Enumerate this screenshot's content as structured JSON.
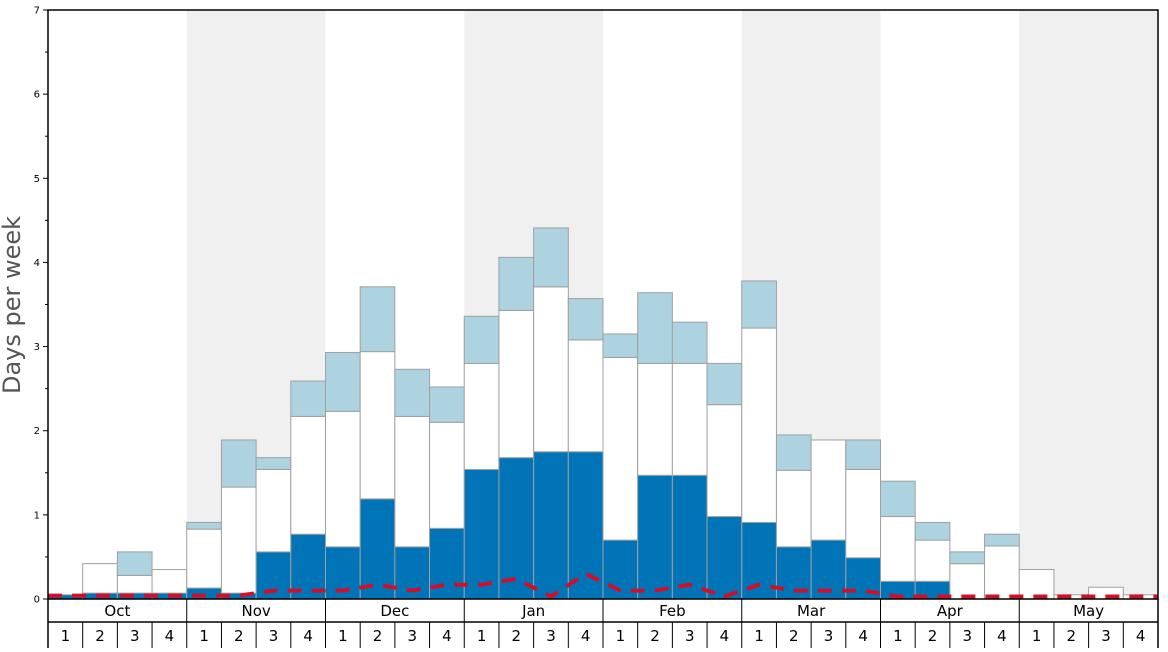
{
  "chart_data": {
    "type": "bar",
    "ylabel": "Days per week",
    "ylim": [
      0,
      7
    ],
    "y_ticks": [
      "0",
      "1",
      "2",
      "3",
      "4",
      "5",
      "6",
      "7"
    ],
    "months": [
      "Oct",
      "Nov",
      "Dec",
      "Jan",
      "Feb",
      "Mar",
      "Apr",
      "May"
    ],
    "weeks": [
      "1",
      "2",
      "3",
      "4",
      "1",
      "2",
      "3",
      "4",
      "1",
      "2",
      "3",
      "4",
      "1",
      "2",
      "3",
      "4",
      "1",
      "2",
      "3",
      "4",
      "1",
      "2",
      "3",
      "4",
      "1",
      "2",
      "3",
      "4",
      "1",
      "2",
      "3",
      "4"
    ],
    "stacked": true,
    "series": [
      {
        "color": "#0074b7",
        "values": [
          0.05,
          0.07,
          0.07,
          0.07,
          0.13,
          0.07,
          0.56,
          0.77,
          0.62,
          1.19,
          0.62,
          0.84,
          1.54,
          1.68,
          1.75,
          1.75,
          0.7,
          1.47,
          1.47,
          0.98,
          0.91,
          0.62,
          0.7,
          0.49,
          0.21,
          0.21,
          0.0,
          0.0,
          0.0,
          0.0,
          0.0,
          0.0
        ]
      },
      {
        "color": "#ffffff",
        "values": [
          0.0,
          0.35,
          0.21,
          0.28,
          0.7,
          1.26,
          0.98,
          1.4,
          1.61,
          1.75,
          1.55,
          1.26,
          1.26,
          1.75,
          1.96,
          1.33,
          2.17,
          1.33,
          1.33,
          1.33,
          2.31,
          0.91,
          1.19,
          1.05,
          0.77,
          0.49,
          0.42,
          0.63,
          0.35,
          0.05,
          0.14,
          0.05
        ]
      },
      {
        "color": "#add3e0",
        "values": [
          0.0,
          0.0,
          0.28,
          0.0,
          0.08,
          0.56,
          0.14,
          0.42,
          0.7,
          0.77,
          0.56,
          0.42,
          0.56,
          0.63,
          0.7,
          0.49,
          0.28,
          0.84,
          0.49,
          0.49,
          0.56,
          0.42,
          0.0,
          0.35,
          0.42,
          0.21,
          0.14,
          0.14,
          0.0,
          0.0,
          0.0,
          0.0
        ]
      }
    ],
    "reference_line": {
      "color": "#d0102a",
      "style": "dashed",
      "values": [
        0.04,
        0.04,
        0.04,
        0.04,
        0.04,
        0.04,
        0.1,
        0.1,
        0.1,
        0.17,
        0.1,
        0.17,
        0.17,
        0.24,
        0.03,
        0.3,
        0.1,
        0.1,
        0.17,
        0.03,
        0.17,
        0.1,
        0.1,
        0.1,
        0.03,
        0.03,
        0.03,
        0.03,
        0.03,
        0.03,
        0.03,
        0.03
      ]
    },
    "month_band_colors": [
      "#ffffff",
      "#f0f0f0"
    ],
    "grid": false,
    "legend": "none"
  }
}
